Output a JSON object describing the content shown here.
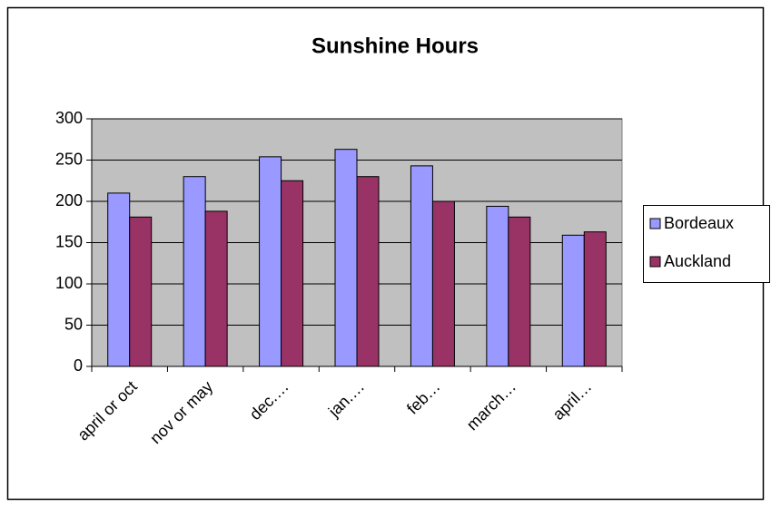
{
  "chart_data": {
    "type": "bar",
    "title": "Sunshine Hours",
    "categories": [
      "april or oct",
      "nov or may",
      "dec.…",
      "jan.…",
      "feb…",
      "march…",
      "april…"
    ],
    "series": [
      {
        "name": "Bordeaux",
        "color": "#9999ff",
        "values": [
          210,
          230,
          254,
          263,
          243,
          194,
          159
        ]
      },
      {
        "name": "Auckland",
        "color": "#993366",
        "values": [
          181,
          188,
          225,
          230,
          200,
          181,
          163
        ]
      }
    ],
    "ylim": [
      0,
      300
    ],
    "yticks": [
      0,
      50,
      100,
      150,
      200,
      250,
      300
    ],
    "grid": true,
    "legend": "right"
  }
}
